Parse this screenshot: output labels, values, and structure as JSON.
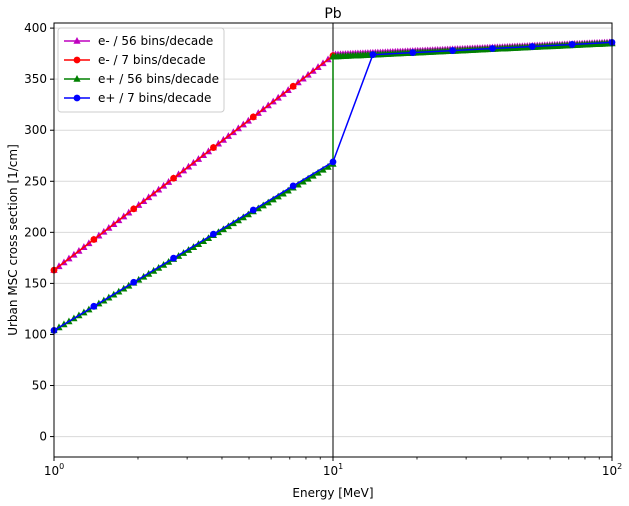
{
  "chart_data": {
    "type": "line",
    "title": "Pb",
    "xlabel": "Energy [MeV]",
    "ylabel": "Urban MSC cross section [1/cm]",
    "xscale": "log",
    "xlim": [
      1,
      100
    ],
    "ylim": [
      -20,
      405
    ],
    "grid": "horizontal",
    "legend_position": "upper-left",
    "vline_x": 10,
    "x_ticks": [
      {
        "base": "10",
        "exp": "0"
      },
      {
        "base": "10",
        "exp": "1"
      },
      {
        "base": "10",
        "exp": "2"
      }
    ],
    "y_ticks": [
      0,
      50,
      100,
      150,
      200,
      250,
      300,
      350,
      400
    ],
    "series": [
      {
        "name": "e- / 56 bins/decade",
        "color": "#bf00bf",
        "marker": "triangle",
        "segments": [
          {
            "x0": 1,
            "x1": 10,
            "y0": 163,
            "y1": 373,
            "bins": 56
          },
          {
            "x0": 10,
            "x1": 100,
            "y0": 374,
            "y1": 386,
            "bins": 112
          }
        ]
      },
      {
        "name": "e- / 7 bins/decade",
        "color": "#ff0000",
        "marker": "circle",
        "segments": [
          {
            "x0": 1,
            "x1": 10,
            "y0": 163,
            "y1": 373,
            "bins": 7
          }
        ]
      },
      {
        "name": "e+ / 56 bins/decade",
        "color": "#008000",
        "marker": "triangle",
        "segments": [
          {
            "x0": 1,
            "x1": 10,
            "y0": 104,
            "y1": 267,
            "bins": 56
          },
          {
            "x0": 10,
            "x1": 100,
            "y0": 372,
            "y1": 385,
            "bins": 112
          }
        ],
        "extra_points": [
          [
            10,
            372
          ]
        ]
      },
      {
        "name": "e+ / 7 bins/decade",
        "color": "#0000ff",
        "marker": "circle",
        "segments": [
          {
            "x0": 1,
            "x1": 10,
            "y0": 104,
            "y1": 269,
            "bins": 7
          },
          {
            "x0": 13.9,
            "x1": 100,
            "y0": 374,
            "y1": 386,
            "bins": 6
          }
        ],
        "jump": [
          [
            10,
            269
          ],
          [
            13.9,
            374
          ]
        ]
      }
    ]
  }
}
